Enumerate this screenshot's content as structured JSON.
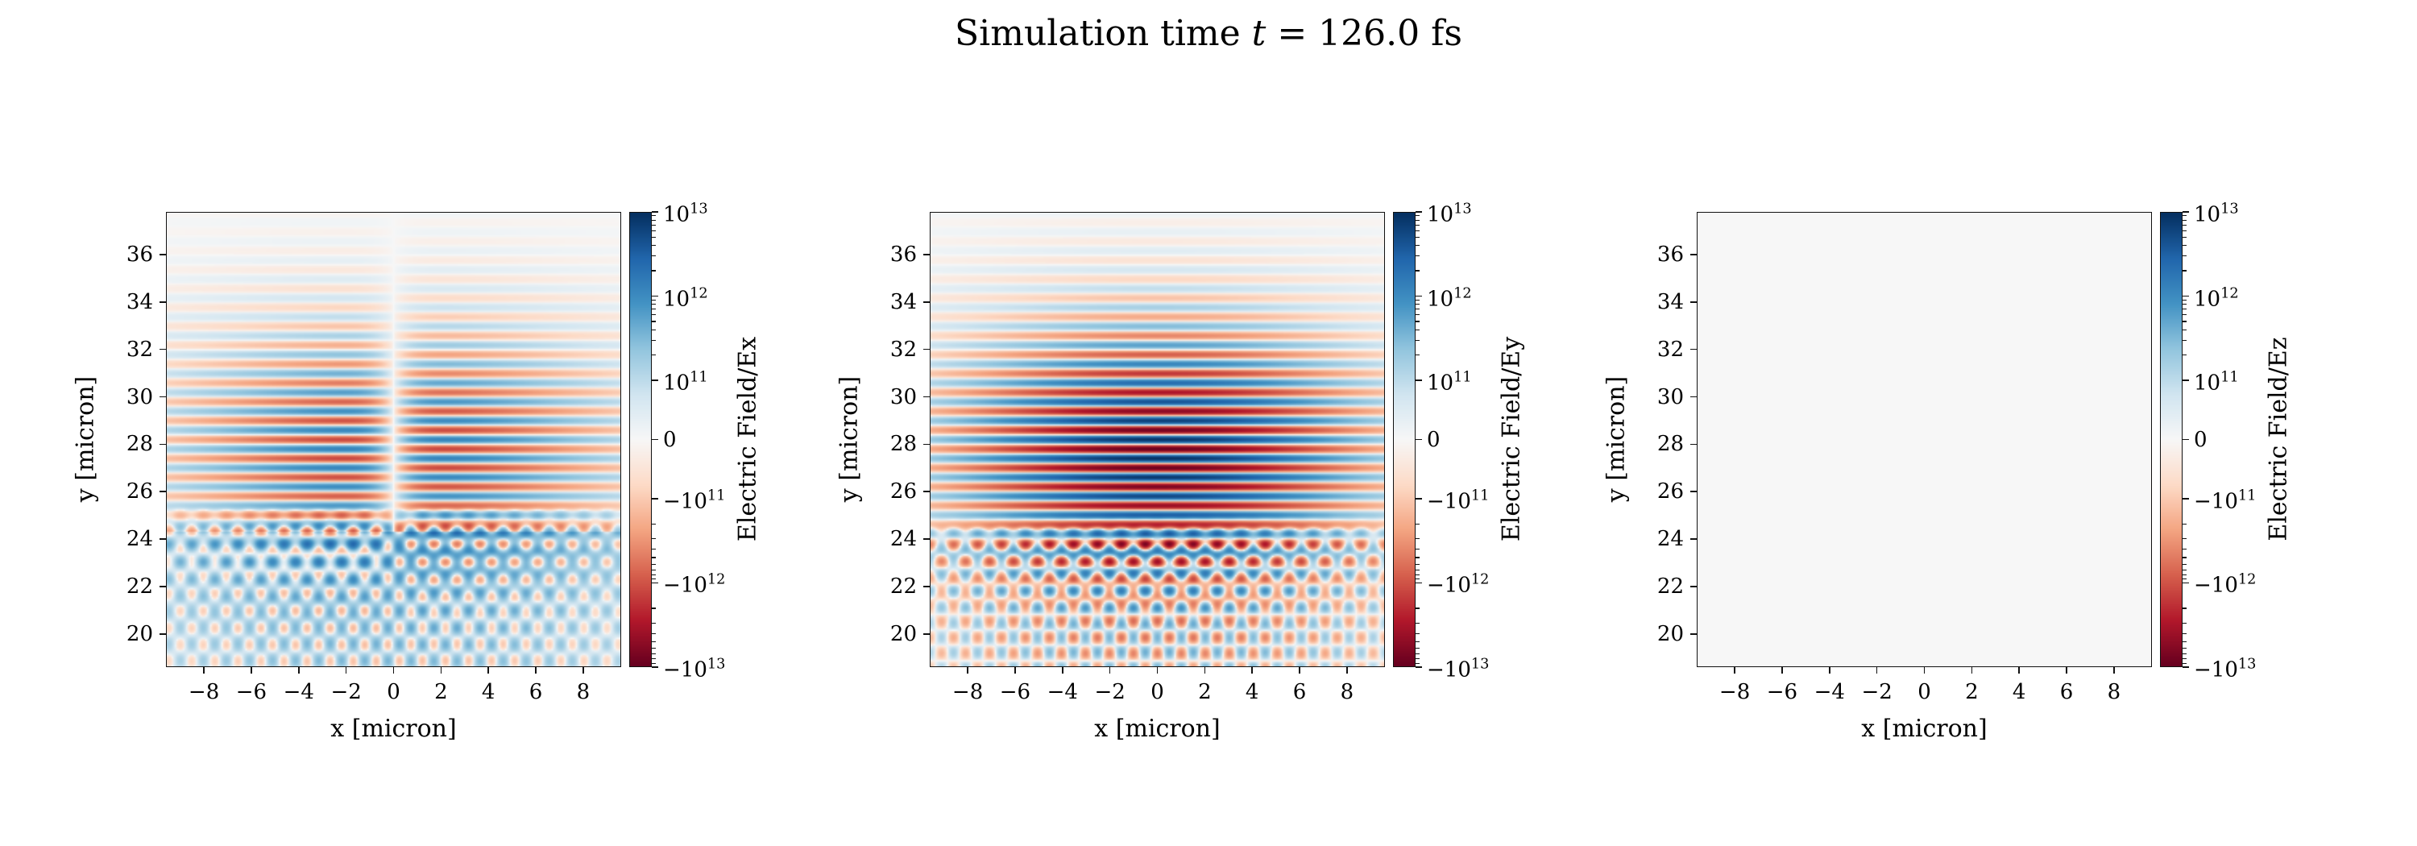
{
  "title": {
    "prefix": "Simulation time ",
    "symbol": "t",
    "suffix": " = 126.0 fs"
  },
  "chart_data": {
    "type": "heatmap",
    "title": {
      "prefix": "Simulation time ",
      "symbol": "t",
      "suffix": " = 126.0 fs"
    },
    "colormap": {
      "name": "RdBu",
      "anchors": [
        "#67001f",
        "#b2182b",
        "#d6604d",
        "#f4a582",
        "#fddbc7",
        "#f7f7f7",
        "#d1e5f0",
        "#92c5de",
        "#4393c4",
        "#2166ac",
        "#053061"
      ]
    },
    "scale": {
      "type": "symlog",
      "linthresh": 100000000000.0,
      "vmin": -10000000000000.0,
      "vmax": 10000000000000.0
    },
    "axes": {
      "xlabel": "x [micron]",
      "ylabel": "y [micron]",
      "x_range": [
        -9.6,
        9.6
      ],
      "y_range": [
        18.6,
        37.8
      ],
      "x_ticks": [
        -8,
        -6,
        -4,
        -2,
        0,
        2,
        4,
        6,
        8
      ],
      "y_ticks": [
        20,
        22,
        24,
        26,
        28,
        30,
        32,
        34,
        36
      ]
    },
    "colorbar": {
      "ticks": [
        10000000000000.0,
        1000000000000.0,
        100000000000.0,
        0,
        -100000000000.0,
        -1000000000000.0,
        -10000000000000.0
      ],
      "tick_positions": [
        0,
        0.185,
        0.37,
        0.5,
        0.63,
        0.815,
        1
      ]
    },
    "panels": [
      {
        "field": "Ex",
        "colorbar_label": "Electric Field/Ex",
        "pattern": {
          "wavelength": 0.8,
          "pulse": {
            "amplitude": 0.55,
            "y_center": 27.7,
            "y_sigma": 3.0,
            "x_sigma": 5.5,
            "x_antisymmetric": true,
            "x_null_width": 1.1,
            "phase": 0
          },
          "scatter": {
            "amplitude": 0.33,
            "y_surface": 24.3,
            "decay": 3.2,
            "angle_deg": 55,
            "antisymmetric": true,
            "bias": 0.2,
            "x_sigma": 8.0
          }
        }
      },
      {
        "field": "Ey",
        "colorbar_label": "Electric Field/Ey",
        "pattern": {
          "wavelength": 0.8,
          "pulse": {
            "amplitude": 1.0,
            "y_center": 27.6,
            "y_sigma": 3.1,
            "x_sigma": 5.2,
            "x_antisymmetric": false,
            "x_null_width": 1,
            "phase": 0
          },
          "scatter": {
            "amplitude": 0.5,
            "y_surface": 23.7,
            "decay": 2.8,
            "angle_deg": 52,
            "antisymmetric": false,
            "bias": 0.0,
            "x_sigma": 7.5
          }
        }
      },
      {
        "field": "Ez",
        "colorbar_label": "Electric Field/Ez",
        "pattern": null
      }
    ]
  }
}
